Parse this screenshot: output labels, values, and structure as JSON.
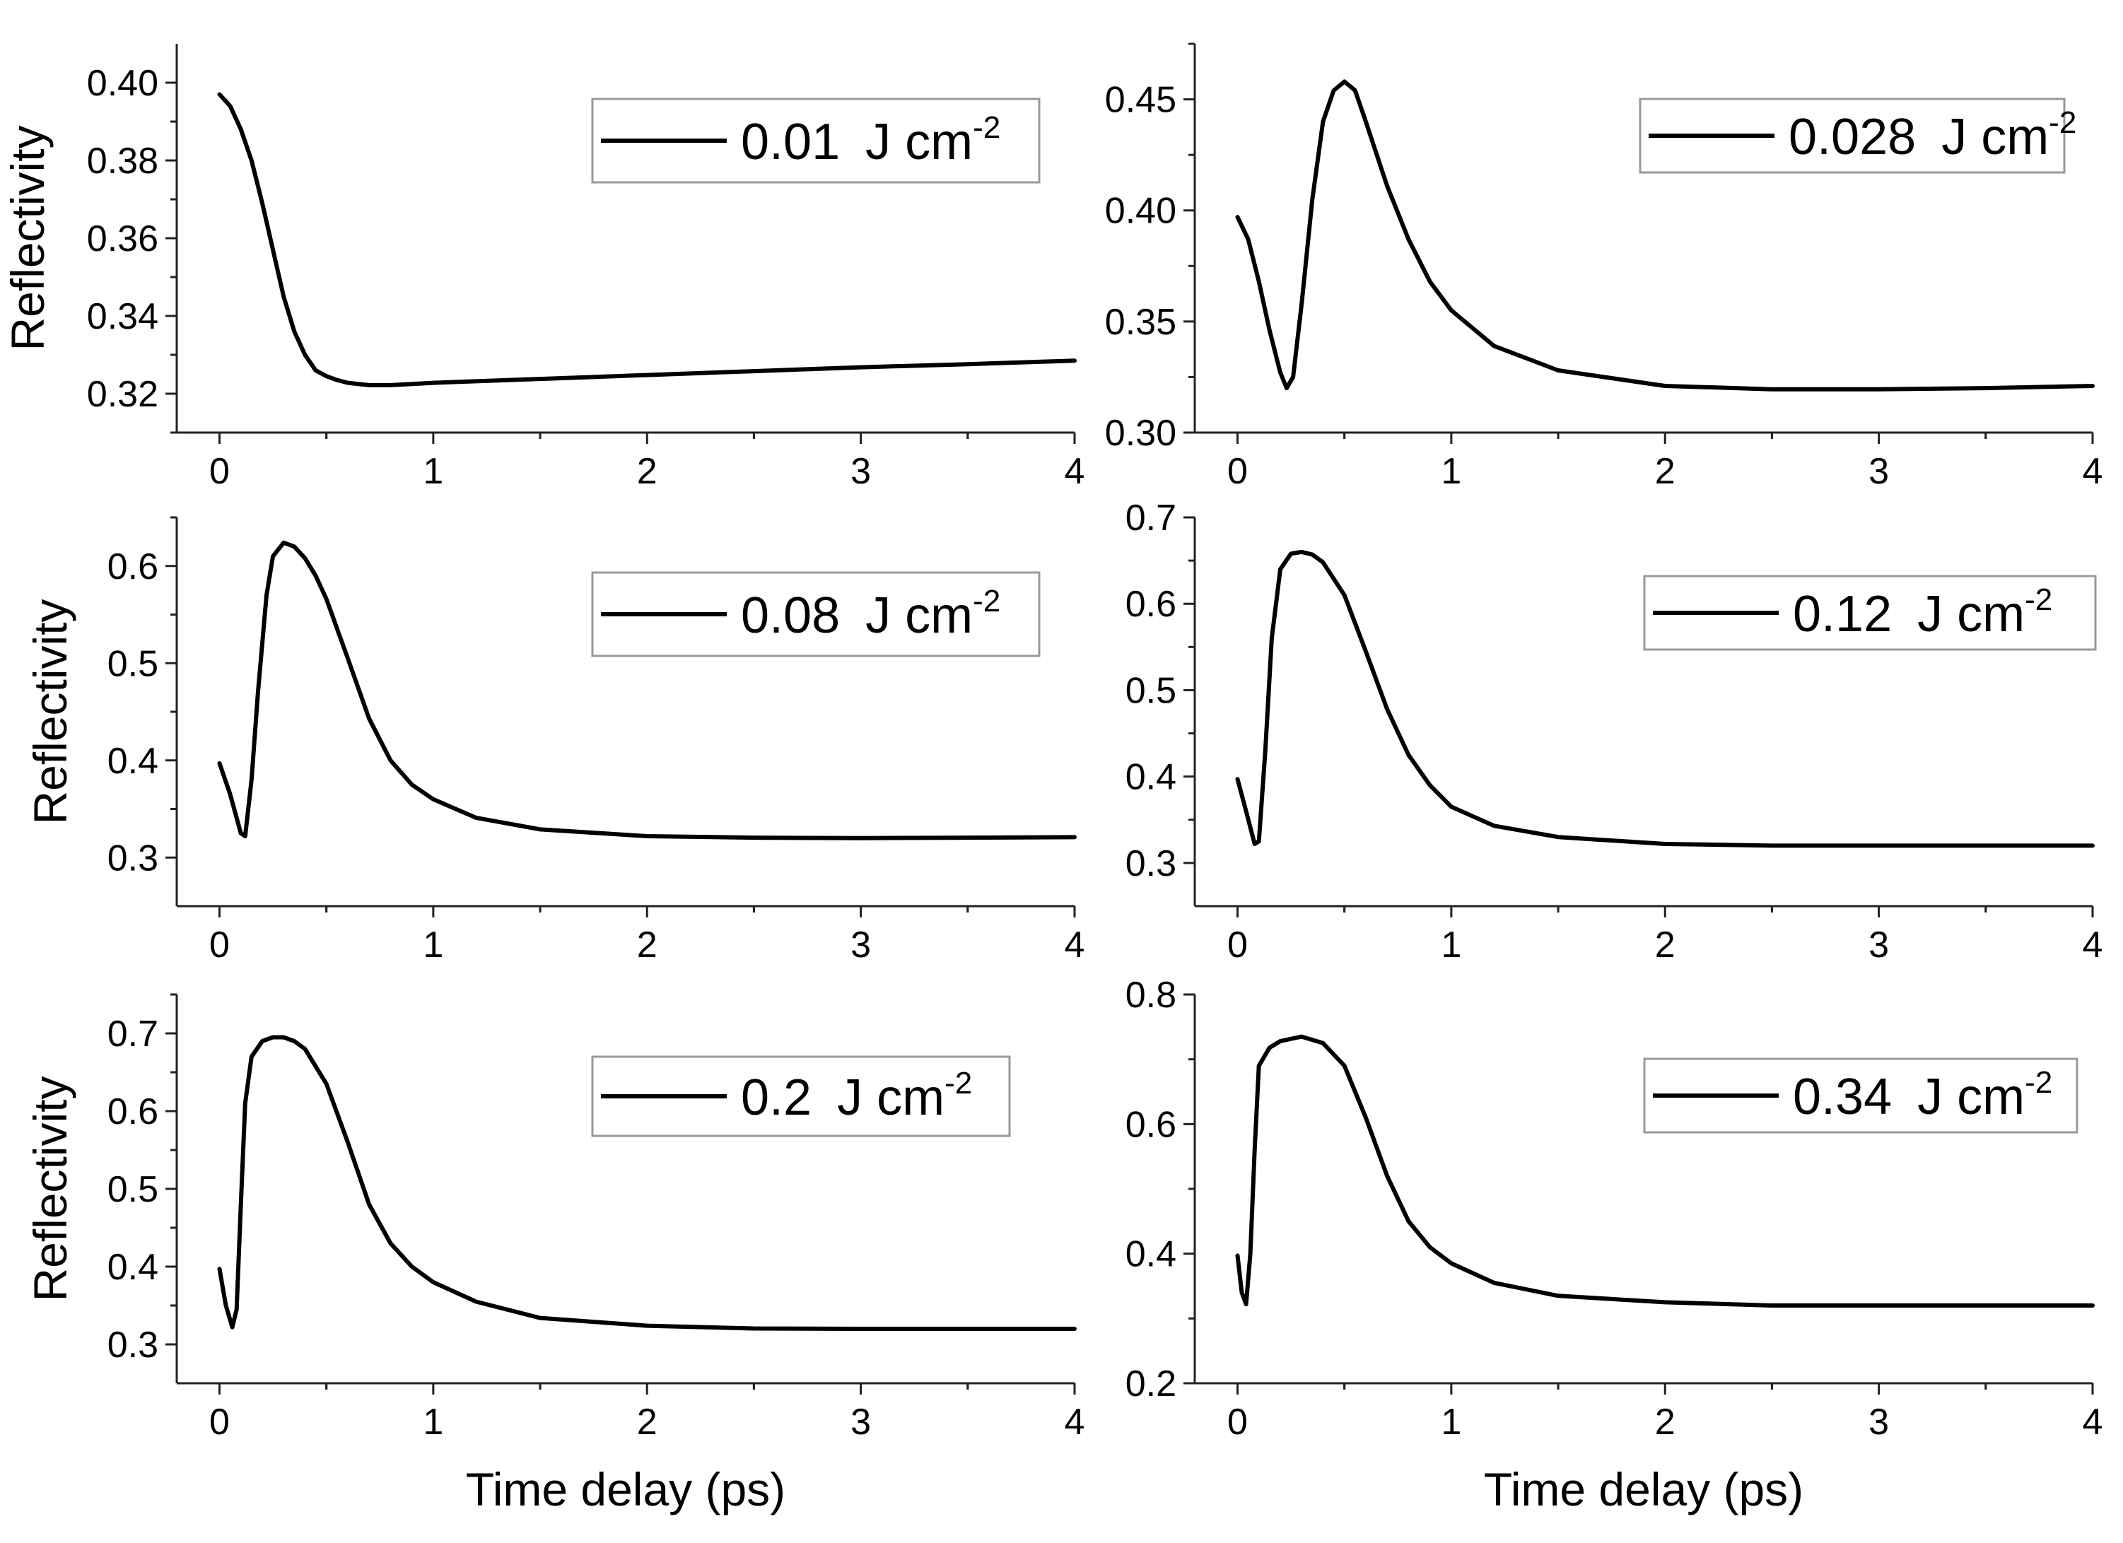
{
  "figure": {
    "xlabel": "Time delay (ps)",
    "ylabel": "Reflectivity",
    "legend_unit": "J cm",
    "legend_exponent": "-2"
  },
  "chart_data": [
    {
      "type": "line",
      "panel": "top-left",
      "xlabel": "",
      "ylabel": "Reflectivity",
      "xlim": [
        -0.2,
        4
      ],
      "ylim": [
        0.31,
        0.41
      ],
      "xticks": [
        0,
        1,
        2,
        3,
        4
      ],
      "xtick_labels": [
        "0",
        "1",
        "2",
        "3",
        "4"
      ],
      "yticks": [
        0.32,
        0.34,
        0.36,
        0.38,
        0.4
      ],
      "ytick_labels": [
        "0.32",
        "0.34",
        "0.36",
        "0.38",
        "0.40"
      ],
      "legend": "0.01",
      "series": [
        {
          "name": "0.01 J cm-2",
          "x": [
            0,
            0.05,
            0.1,
            0.15,
            0.2,
            0.25,
            0.3,
            0.35,
            0.4,
            0.45,
            0.5,
            0.55,
            0.6,
            0.7,
            0.8,
            1.0,
            1.5,
            2.0,
            2.5,
            3.0,
            3.5,
            4.0
          ],
          "y": [
            0.397,
            0.394,
            0.388,
            0.38,
            0.369,
            0.357,
            0.345,
            0.336,
            0.33,
            0.326,
            0.3245,
            0.3235,
            0.3228,
            0.3222,
            0.3222,
            0.3228,
            0.3238,
            0.3248,
            0.3258,
            0.3268,
            0.3276,
            0.3285
          ]
        }
      ]
    },
    {
      "type": "line",
      "panel": "top-right",
      "xlabel": "",
      "ylabel": "",
      "xlim": [
        -0.2,
        4
      ],
      "ylim": [
        0.3,
        0.475
      ],
      "xticks": [
        0,
        1,
        2,
        3,
        4
      ],
      "xtick_labels": [
        "0",
        "1",
        "2",
        "3",
        "4"
      ],
      "yticks": [
        0.3,
        0.35,
        0.4,
        0.45
      ],
      "ytick_labels": [
        "0.30",
        "0.35",
        "0.40",
        "0.45"
      ],
      "legend": "0.028",
      "series": [
        {
          "name": "0.028 J cm-2",
          "x": [
            0,
            0.05,
            0.1,
            0.15,
            0.2,
            0.23,
            0.26,
            0.3,
            0.35,
            0.4,
            0.45,
            0.5,
            0.55,
            0.6,
            0.7,
            0.8,
            0.9,
            1.0,
            1.2,
            1.5,
            2.0,
            2.5,
            3.0,
            3.5,
            4.0
          ],
          "y": [
            0.397,
            0.387,
            0.368,
            0.346,
            0.327,
            0.32,
            0.325,
            0.358,
            0.405,
            0.44,
            0.454,
            0.458,
            0.454,
            0.44,
            0.411,
            0.387,
            0.368,
            0.355,
            0.339,
            0.328,
            0.321,
            0.3195,
            0.3195,
            0.32,
            0.321
          ]
        }
      ]
    },
    {
      "type": "line",
      "panel": "middle-left",
      "xlabel": "",
      "ylabel": "Reflectivity",
      "xlim": [
        -0.2,
        4
      ],
      "ylim": [
        0.25,
        0.65
      ],
      "xticks": [
        0,
        1,
        2,
        3,
        4
      ],
      "xtick_labels": [
        "0",
        "1",
        "2",
        "3",
        "4"
      ],
      "yticks": [
        0.3,
        0.4,
        0.5,
        0.6
      ],
      "ytick_labels": [
        "0.3",
        "0.4",
        "0.5",
        "0.6"
      ],
      "legend": "0.08",
      "series": [
        {
          "name": "0.08 J cm-2",
          "x": [
            0,
            0.05,
            0.1,
            0.12,
            0.15,
            0.18,
            0.22,
            0.25,
            0.3,
            0.35,
            0.4,
            0.45,
            0.5,
            0.6,
            0.7,
            0.8,
            0.9,
            1.0,
            1.2,
            1.5,
            2.0,
            2.5,
            3.0,
            3.5,
            4.0
          ],
          "y": [
            0.397,
            0.365,
            0.325,
            0.322,
            0.38,
            0.47,
            0.57,
            0.61,
            0.624,
            0.62,
            0.608,
            0.59,
            0.566,
            0.505,
            0.443,
            0.4,
            0.375,
            0.36,
            0.341,
            0.329,
            0.322,
            0.3205,
            0.32,
            0.3205,
            0.321
          ]
        }
      ]
    },
    {
      "type": "line",
      "panel": "middle-right",
      "xlabel": "",
      "ylabel": "",
      "xlim": [
        -0.2,
        4
      ],
      "ylim": [
        0.25,
        0.7
      ],
      "xticks": [
        0,
        1,
        2,
        3,
        4
      ],
      "xtick_labels": [
        "0",
        "1",
        "2",
        "3",
        "4"
      ],
      "yticks": [
        0.3,
        0.4,
        0.5,
        0.6,
        0.7
      ],
      "ytick_labels": [
        "0.3",
        "0.4",
        "0.5",
        "0.6",
        "0.7"
      ],
      "legend": "0.12",
      "series": [
        {
          "name": "0.12 J cm-2",
          "x": [
            0,
            0.04,
            0.08,
            0.1,
            0.13,
            0.16,
            0.2,
            0.25,
            0.3,
            0.35,
            0.4,
            0.5,
            0.6,
            0.7,
            0.8,
            0.9,
            1.0,
            1.2,
            1.5,
            2.0,
            2.5,
            3.0,
            3.5,
            4.0
          ],
          "y": [
            0.397,
            0.36,
            0.322,
            0.325,
            0.43,
            0.56,
            0.64,
            0.658,
            0.66,
            0.657,
            0.648,
            0.61,
            0.545,
            0.478,
            0.425,
            0.39,
            0.365,
            0.343,
            0.33,
            0.322,
            0.32,
            0.32,
            0.32,
            0.32
          ]
        }
      ]
    },
    {
      "type": "line",
      "panel": "bottom-left",
      "xlabel": "Time delay (ps)",
      "ylabel": "Reflectivity",
      "xlim": [
        -0.2,
        4
      ],
      "ylim": [
        0.25,
        0.75
      ],
      "xticks": [
        0,
        1,
        2,
        3,
        4
      ],
      "xtick_labels": [
        "0",
        "1",
        "2",
        "3",
        "4"
      ],
      "yticks": [
        0.3,
        0.4,
        0.5,
        0.6,
        0.7
      ],
      "ytick_labels": [
        "0.3",
        "0.4",
        "0.5",
        "0.6",
        "0.7"
      ],
      "legend": "0.2",
      "series": [
        {
          "name": "0.2 J cm-2",
          "x": [
            0,
            0.03,
            0.06,
            0.08,
            0.1,
            0.12,
            0.15,
            0.2,
            0.25,
            0.3,
            0.35,
            0.4,
            0.5,
            0.6,
            0.7,
            0.8,
            0.9,
            1.0,
            1.2,
            1.5,
            2.0,
            2.5,
            3.0,
            3.5,
            4.0
          ],
          "y": [
            0.397,
            0.35,
            0.322,
            0.345,
            0.48,
            0.61,
            0.67,
            0.69,
            0.695,
            0.695,
            0.69,
            0.68,
            0.635,
            0.56,
            0.48,
            0.43,
            0.4,
            0.38,
            0.355,
            0.334,
            0.324,
            0.3205,
            0.32,
            0.32,
            0.32
          ]
        }
      ]
    },
    {
      "type": "line",
      "panel": "bottom-right",
      "xlabel": "Time delay (ps)",
      "ylabel": "",
      "xlim": [
        -0.2,
        4
      ],
      "ylim": [
        0.2,
        0.8
      ],
      "xticks": [
        0,
        1,
        2,
        3,
        4
      ],
      "xtick_labels": [
        "0",
        "1",
        "2",
        "3",
        "4"
      ],
      "yticks": [
        0.2,
        0.4,
        0.6,
        0.8
      ],
      "ytick_labels": [
        "0.2",
        "0.4",
        "0.6",
        "0.8"
      ],
      "legend": "0.34",
      "series": [
        {
          "name": "0.34 J cm-2",
          "x": [
            0,
            0.02,
            0.04,
            0.06,
            0.08,
            0.1,
            0.15,
            0.2,
            0.3,
            0.4,
            0.5,
            0.6,
            0.7,
            0.8,
            0.9,
            1.0,
            1.2,
            1.5,
            2.0,
            2.5,
            3.0,
            3.5,
            4.0
          ],
          "y": [
            0.397,
            0.34,
            0.322,
            0.4,
            0.56,
            0.69,
            0.718,
            0.728,
            0.735,
            0.725,
            0.69,
            0.61,
            0.52,
            0.45,
            0.41,
            0.385,
            0.355,
            0.335,
            0.325,
            0.32,
            0.32,
            0.32,
            0.32
          ]
        }
      ]
    }
  ]
}
